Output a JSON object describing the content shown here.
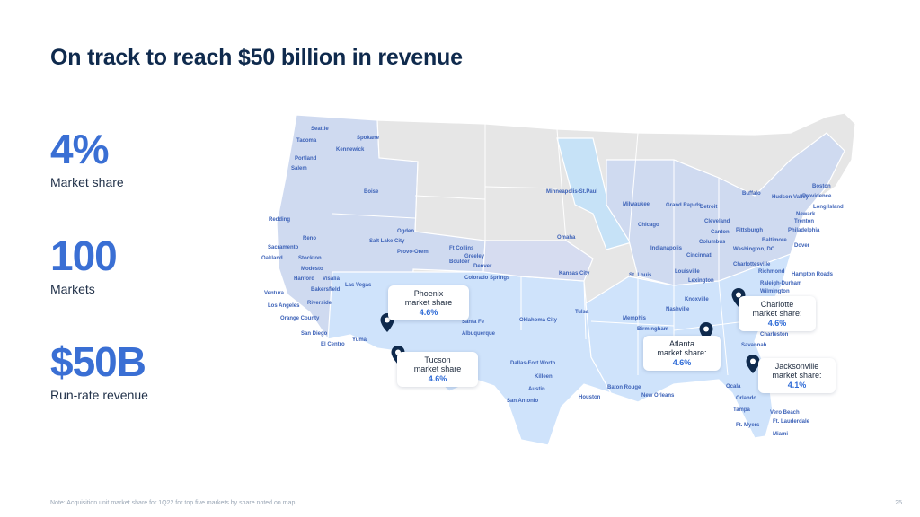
{
  "title": "On track to reach $50 billion in revenue",
  "stats": [
    {
      "value": "4%",
      "label": "Market share"
    },
    {
      "value": "100",
      "label": "Markets"
    },
    {
      "value": "$50B",
      "label": "Run-rate revenue"
    }
  ],
  "note": "Note: Acquisition unit market share for 1Q22 for top five markets by share noted on map",
  "page_number": "25",
  "map": {
    "callouts": [
      {
        "name": "Phoenix",
        "label": "market share",
        "pct": "4.6%"
      },
      {
        "name": "Tucson",
        "label": "market share",
        "pct": "4.6%"
      },
      {
        "name": "Atlanta",
        "label": "market share:",
        "pct": "4.6%"
      },
      {
        "name": "Charlotte",
        "label": "market share:",
        "pct": "4.6%"
      },
      {
        "name": "Jacksonville",
        "label": "market share:",
        "pct": "4.1%"
      }
    ],
    "cities": [
      "Seattle",
      "Tacoma",
      "Spokane",
      "Kennewick",
      "Portland",
      "Salem",
      "Boise",
      "Redding",
      "Reno",
      "Sacramento",
      "Oakland",
      "Stockton",
      "Modesto",
      "Hanford",
      "Visalia",
      "Bakersfield",
      "Ventura",
      "Los Angeles",
      "Riverside",
      "Orange County",
      "San Diego",
      "El Centro",
      "Las Vegas",
      "Yuma",
      "Ogden",
      "Salt Lake City",
      "Provo-Orem",
      "Ft Collins",
      "Greeley",
      "Boulder",
      "Denver",
      "Colorado Springs",
      "Santa Fe",
      "Albuquerque",
      "Oklahoma City",
      "Tulsa",
      "Dallas-Fort Worth",
      "Killeen",
      "Austin",
      "San Antonio",
      "Houston",
      "Baton Rouge",
      "New Orleans",
      "Memphis",
      "Birmingham",
      "Minneapolis-St.Paul",
      "Omaha",
      "Kansas City",
      "St. Louis",
      "Milwaukee",
      "Chicago",
      "Grand Rapids",
      "Detroit",
      "Indianapolis",
      "Cincinnati",
      "Louisville",
      "Lexington",
      "Knoxville",
      "Nashville",
      "Cleveland",
      "Canton",
      "Columbus",
      "Pittsburgh",
      "Buffalo",
      "Hudson Valley",
      "Boston",
      "Providence",
      "Long Island",
      "Newark",
      "Trenton",
      "Philadelphia",
      "Baltimore",
      "Dover",
      "Washington, DC",
      "Charlottesville",
      "Richmond",
      "Hampton Roads",
      "Raleigh-Durham",
      "Wilmington",
      "Charleston",
      "Savannah",
      "Ocala",
      "Orlando",
      "Tampa",
      "Vero Beach",
      "Ft. Lauderdale",
      "Ft. Myers",
      "Miami"
    ]
  }
}
